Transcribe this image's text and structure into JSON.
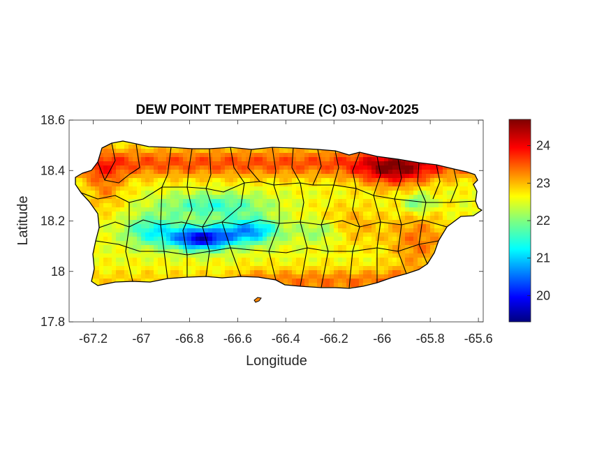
{
  "chart_data": {
    "type": "heatmap",
    "title": "DEW POINT TEMPERATURE (C) 03-Nov-2025",
    "xlabel": "Longitude",
    "ylabel": "Latitude",
    "xlim": [
      -67.3,
      -65.58
    ],
    "ylim": [
      17.8,
      18.6
    ],
    "xticks": [
      -67.2,
      -67,
      -66.8,
      -66.6,
      -66.4,
      -66.2,
      -66,
      -65.8,
      -65.6
    ],
    "xtick_labels": [
      "-67.2",
      "-67",
      "-66.8",
      "-66.6",
      "-66.4",
      "-66.2",
      "-66",
      "-65.8",
      "-65.6"
    ],
    "yticks": [
      17.8,
      18,
      18.2,
      18.4,
      18.6
    ],
    "ytick_labels": [
      "17.8",
      "18",
      "18.2",
      "18.4",
      "18.6"
    ],
    "colormap": "jet",
    "colorbar": {
      "range": [
        19.3,
        24.7
      ],
      "ticks": [
        20,
        21,
        22,
        23,
        24
      ],
      "tick_labels": [
        "20",
        "21",
        "22",
        "23",
        "24"
      ],
      "placement": "right"
    },
    "field_notes": {
      "highest_region": "northeast coast (about -66.05 to -65.85, 18.40)",
      "lowest_region": "central interior (about -66.78, 18.13)"
    },
    "grid": false
  },
  "colors": {
    "background": "#ffffff",
    "axes_face": "#ffffff",
    "axis_line": "#262626",
    "boundary": "#000000"
  }
}
